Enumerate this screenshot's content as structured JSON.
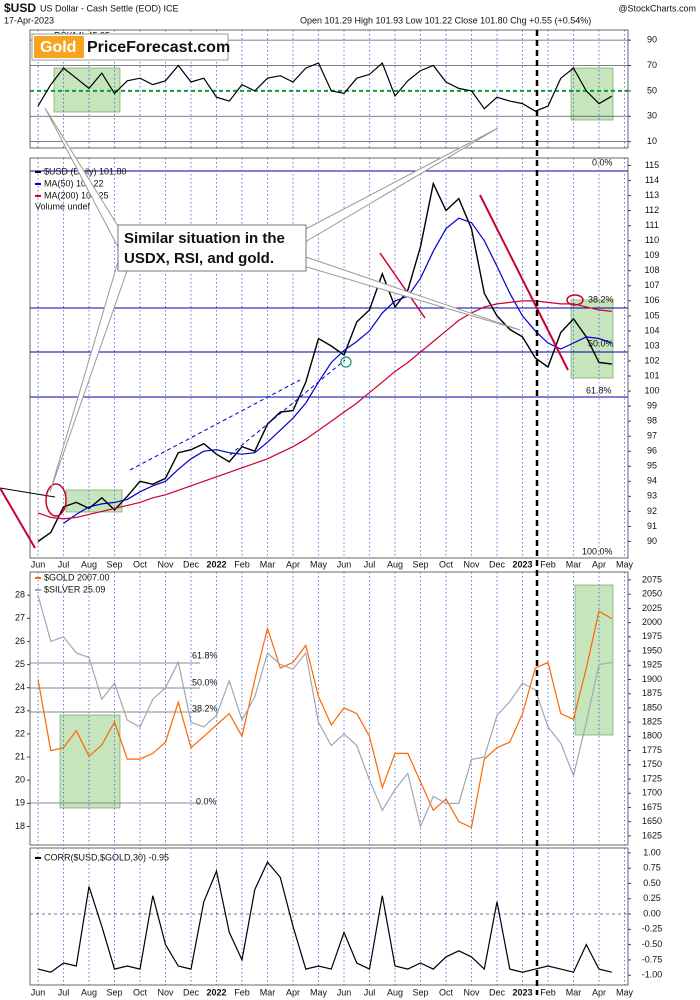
{
  "header": {
    "symbol": "$USD",
    "name": "US Dollar - Cash Settle (EOD) ICE",
    "date": "17-Apr-2023",
    "quote": "Open 101.29 High 101.93 Low 101.22 Close 101.80 Chg +0.55 (+0.54%)",
    "credit": "@StockCharts.com",
    "logo_gold": "Gold",
    "logo_rest": "PriceForecast.com",
    "annotation": [
      "Similar situation in the",
      "USDX, RSI, and gold."
    ],
    "usd_fibs": [
      "0.0%",
      "38.2%",
      "50.0%",
      "61.8%",
      "100.0%"
    ],
    "gold_fibs": [
      "61.8%",
      "50.0%",
      "38.2%",
      "0.0%"
    ],
    "volume": "Volume undef"
  },
  "chart_data": [
    {
      "type": "line",
      "ylim": [
        5,
        98
      ],
      "yticks": [
        10,
        30,
        50,
        70,
        90
      ],
      "grid": true,
      "series": [
        {
          "name": "RSI(14) 45.85",
          "color": "#000000",
          "values": [
            38,
            55,
            68,
            60,
            52,
            64,
            48,
            58,
            60,
            55,
            58,
            70,
            57,
            60,
            45,
            42,
            55,
            50,
            60,
            62,
            57,
            68,
            72,
            50,
            48,
            60,
            63,
            72,
            46,
            58,
            66,
            70,
            57,
            52,
            50,
            36,
            45,
            42,
            40,
            34,
            38,
            60,
            68,
            50,
            40,
            45.85,
            null
          ]
        }
      ]
    },
    {
      "type": "line",
      "ylim": [
        88.9,
        115.5
      ],
      "yticks": [
        90,
        91,
        92,
        93,
        94,
        95,
        96,
        97,
        98,
        99,
        100,
        101,
        102,
        103,
        104,
        105,
        106,
        107,
        108,
        109,
        110,
        111,
        112,
        113,
        114,
        115
      ],
      "grid": false,
      "categories": [
        "Jun",
        null,
        "Jul",
        null,
        "Aug",
        null,
        "Sep",
        null,
        "Oct",
        null,
        "Nov",
        null,
        "Dec",
        null,
        "2022",
        null,
        "Feb",
        null,
        "Mar",
        null,
        "Apr",
        null,
        "May",
        null,
        "Jun",
        null,
        "Jul",
        null,
        "Aug",
        null,
        "Sep",
        null,
        "Oct",
        null,
        "Nov",
        null,
        "Dec",
        null,
        "2023",
        null,
        "Feb",
        null,
        "Mar",
        null,
        "Apr",
        null,
        "May"
      ],
      "series": [
        {
          "name": "$USD (Daily) 101.80",
          "color": "#000000",
          "values": [
            90.0,
            90.6,
            92.3,
            92.6,
            92.2,
            92.9,
            92.1,
            93.0,
            94.0,
            93.8,
            94.2,
            95.9,
            96.1,
            96.5,
            95.8,
            95.3,
            96.3,
            96.0,
            97.8,
            98.6,
            98.7,
            100.6,
            103.5,
            103.0,
            102.4,
            104.6,
            105.4,
            107.8,
            105.6,
            106.7,
            109.6,
            113.8,
            112.0,
            112.8,
            110.8,
            106.5,
            105.0,
            104.1,
            103.6,
            102.2,
            101.6,
            103.9,
            104.8,
            103.6,
            101.9,
            101.8,
            null
          ]
        },
        {
          "name": "MA(50) 103.22",
          "color": "#0000cc",
          "values": [
            null,
            null,
            91.2,
            91.8,
            92.3,
            92.5,
            92.6,
            92.8,
            93.3,
            93.7,
            94.0,
            94.8,
            95.5,
            96.0,
            96.1,
            95.9,
            95.8,
            95.9,
            96.6,
            97.4,
            98.2,
            99.2,
            100.6,
            101.9,
            102.7,
            103.3,
            104.0,
            105.2,
            106.0,
            106.3,
            107.5,
            109.3,
            110.8,
            111.5,
            111.2,
            110.0,
            108.3,
            106.5,
            105.0,
            104.0,
            103.2,
            102.8,
            103.2,
            103.6,
            103.5,
            103.2,
            null
          ]
        },
        {
          "name": "MA(200) 104.25",
          "color": "#cc0033",
          "values": [
            91.9,
            91.6,
            91.5,
            91.6,
            91.8,
            92.0,
            92.2,
            92.4,
            92.6,
            92.9,
            93.1,
            93.4,
            93.7,
            94.0,
            94.3,
            94.6,
            94.9,
            95.2,
            95.5,
            95.9,
            96.3,
            96.8,
            97.4,
            98.0,
            98.6,
            99.2,
            99.9,
            100.6,
            101.3,
            101.9,
            102.6,
            103.3,
            104.0,
            104.7,
            105.2,
            105.6,
            105.8,
            105.9,
            106.0,
            106.0,
            105.9,
            105.8,
            105.8,
            105.6,
            105.4,
            105.3,
            null
          ]
        }
      ]
    },
    {
      "type": "line",
      "ylim": [
        17.2,
        29
      ],
      "yticks": [
        18,
        19,
        20,
        21,
        22,
        23,
        24,
        25,
        26,
        27,
        28
      ],
      "y2lim": [
        1609,
        2089
      ],
      "y2ticks": [
        1625,
        1650,
        1675,
        1700,
        1725,
        1750,
        1775,
        1800,
        1825,
        1850,
        1875,
        1900,
        1925,
        1950,
        1975,
        2000,
        2025,
        2050,
        2075
      ],
      "grid": false,
      "series": [
        {
          "name": "$GOLD 2007.00",
          "color": "#ff6600",
          "axis": "y2",
          "values": [
            1900,
            1775,
            1780,
            1810,
            1765,
            1785,
            1825,
            1760,
            1760,
            1770,
            1790,
            1860,
            1780,
            1800,
            1820,
            1840,
            1800,
            1900,
            1990,
            1920,
            1930,
            1960,
            1870,
            1820,
            1850,
            1840,
            1800,
            1710,
            1770,
            1770,
            1720,
            1670,
            1690,
            1650,
            1640,
            1760,
            1780,
            1790,
            1840,
            1920,
            1930,
            1840,
            1830,
            1920,
            2020,
            2007,
            null
          ]
        },
        {
          "name": "$SILVER 25.09",
          "color": "#a0a8b0",
          "values": [
            28.0,
            26.0,
            26.2,
            25.5,
            25.3,
            23.5,
            24.2,
            22.6,
            22.3,
            23.5,
            24.0,
            25.1,
            22.5,
            22.3,
            22.8,
            24.3,
            22.6,
            23.6,
            25.5,
            25.0,
            24.8,
            25.5,
            22.5,
            21.5,
            22.0,
            21.5,
            20.0,
            18.7,
            19.6,
            20.3,
            18.0,
            19.3,
            19.0,
            19.0,
            20.9,
            21.0,
            22.8,
            23.4,
            24.2,
            23.9,
            22.3,
            21.6,
            20.2,
            22.5,
            25.0,
            25.09,
            null
          ]
        }
      ]
    },
    {
      "type": "line",
      "ylim": [
        -1.16,
        1.08
      ],
      "yticks": [
        {
          "value": 1,
          "label": "1.00"
        },
        {
          "value": 0.75,
          "label": "0.75"
        },
        {
          "value": 0.5,
          "label": "0.50"
        },
        {
          "value": 0.25,
          "label": "0.25"
        },
        {
          "value": 0,
          "label": "0.00"
        },
        {
          "value": -0.25,
          "label": "-0.25"
        },
        {
          "value": -0.5,
          "label": "-0.50"
        },
        {
          "value": -0.75,
          "label": "-0.75"
        },
        {
          "value": -1,
          "label": "-1.00"
        }
      ],
      "grid": false,
      "categories": [
        "Jun",
        null,
        "Jul",
        null,
        "Aug",
        null,
        "Sep",
        null,
        "Oct",
        null,
        "Nov",
        null,
        "Dec",
        null,
        "2022",
        null,
        "Feb",
        null,
        "Mar",
        null,
        "Apr",
        null,
        "May",
        null,
        "Jun",
        null,
        "Jul",
        null,
        "Aug",
        null,
        "Sep",
        null,
        "Oct",
        null,
        "Nov",
        null,
        "Dec",
        null,
        "2023",
        null,
        "Feb",
        null,
        "Mar",
        null,
        "Apr",
        null,
        "May"
      ],
      "series": [
        {
          "name": "CORR($USD,$GOLD,30) -0.95",
          "color": "#000000",
          "values": [
            -0.9,
            -0.95,
            -0.8,
            -0.85,
            0.45,
            -0.2,
            -0.9,
            -0.85,
            -0.9,
            0.3,
            -0.5,
            -0.85,
            -0.9,
            0.2,
            0.7,
            -0.3,
            -0.75,
            0.4,
            0.85,
            0.6,
            -0.2,
            -0.9,
            -0.85,
            -0.9,
            -0.3,
            -0.8,
            -0.9,
            0.3,
            -0.85,
            -0.9,
            -0.8,
            -0.9,
            -0.7,
            -0.6,
            -0.7,
            -0.9,
            0.2,
            -0.9,
            -0.95,
            -0.9,
            -0.85,
            -0.9,
            -0.95,
            -0.5,
            -0.9,
            -0.95,
            null
          ]
        }
      ]
    }
  ]
}
